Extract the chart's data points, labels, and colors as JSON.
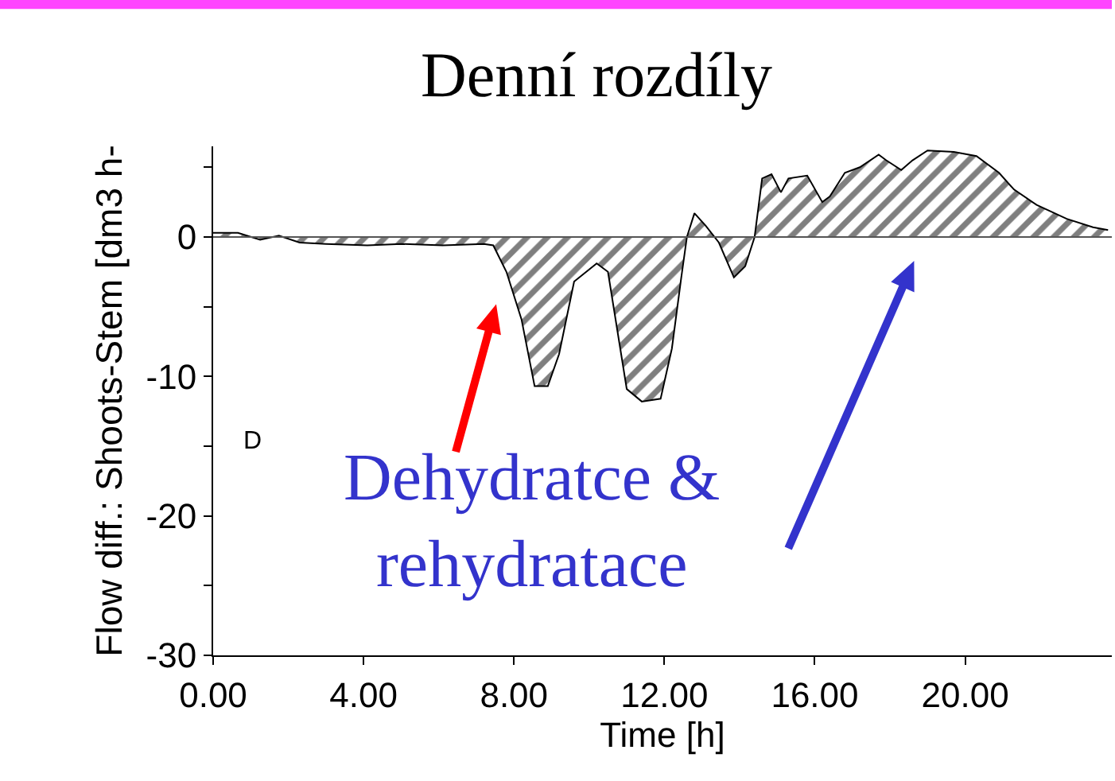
{
  "chart_data": {
    "type": "area",
    "title": "Denní rozdíly",
    "xlabel": "Time [h]",
    "ylabel": "Flow diff.: Shoots-Stem [dm3 h-",
    "annotations": [
      "D",
      "Dehydratce &\nrehydratace"
    ],
    "x": [
      0,
      0.66,
      1.25,
      1.75,
      2.3,
      3.0,
      4.1,
      5.0,
      6.1,
      7.2,
      7.45,
      7.8,
      8.2,
      8.55,
      8.9,
      9.2,
      9.6,
      10.2,
      10.5,
      11.0,
      11.4,
      11.9,
      12.2,
      12.45,
      12.6,
      12.8,
      13.1,
      13.45,
      13.85,
      14.15,
      14.4,
      14.6,
      14.85,
      15.1,
      15.3,
      15.8,
      16.2,
      16.4,
      16.8,
      17.2,
      17.7,
      17.9,
      18.3,
      18.6,
      19.0,
      19.7,
      20.3,
      20.9,
      21.3,
      21.9,
      22.7,
      23.4,
      23.8
    ],
    "series": [
      {
        "color": "#000000",
        "values": [
          0.3,
          0.3,
          -0.2,
          0.1,
          -0.4,
          -0.5,
          -0.6,
          -0.5,
          -0.6,
          -0.5,
          -0.6,
          -2.5,
          -5.9,
          -10.7,
          -10.7,
          -8.4,
          -3.2,
          -1.9,
          -2.5,
          -10.9,
          -11.8,
          -11.6,
          -8.0,
          -2.9,
          0,
          1.7,
          0.8,
          -0.4,
          -2.9,
          -2.1,
          0,
          4.2,
          4.5,
          3.2,
          4.2,
          4.4,
          2.5,
          2.9,
          4.6,
          5.0,
          5.9,
          5.5,
          4.8,
          5.5,
          6.2,
          6.1,
          5.8,
          4.6,
          3.4,
          2.3,
          1.3,
          0.7,
          0.5
        ]
      }
    ],
    "ref_lines": [
      {
        "axis": "y",
        "value": 0,
        "color": "#555555"
      }
    ],
    "xlim": [
      0,
      23.9
    ],
    "ylim": [
      -30,
      6.5
    ],
    "xticks": [
      {
        "value": 0,
        "label": "0.00"
      },
      {
        "value": 4,
        "label": "4.00"
      },
      {
        "value": 8,
        "label": "8.00"
      },
      {
        "value": 12,
        "label": "12.00"
      },
      {
        "value": 16,
        "label": "16.00"
      },
      {
        "value": 20,
        "label": "20.00"
      }
    ],
    "yticks": [
      {
        "value": 5,
        "label": null
      },
      0,
      {
        "value": -5,
        "label": null
      },
      -10,
      {
        "value": -15,
        "label": null
      },
      -20,
      {
        "value": -25,
        "label": null
      },
      -30
    ],
    "marker": "none",
    "line_style": "solid"
  }
}
